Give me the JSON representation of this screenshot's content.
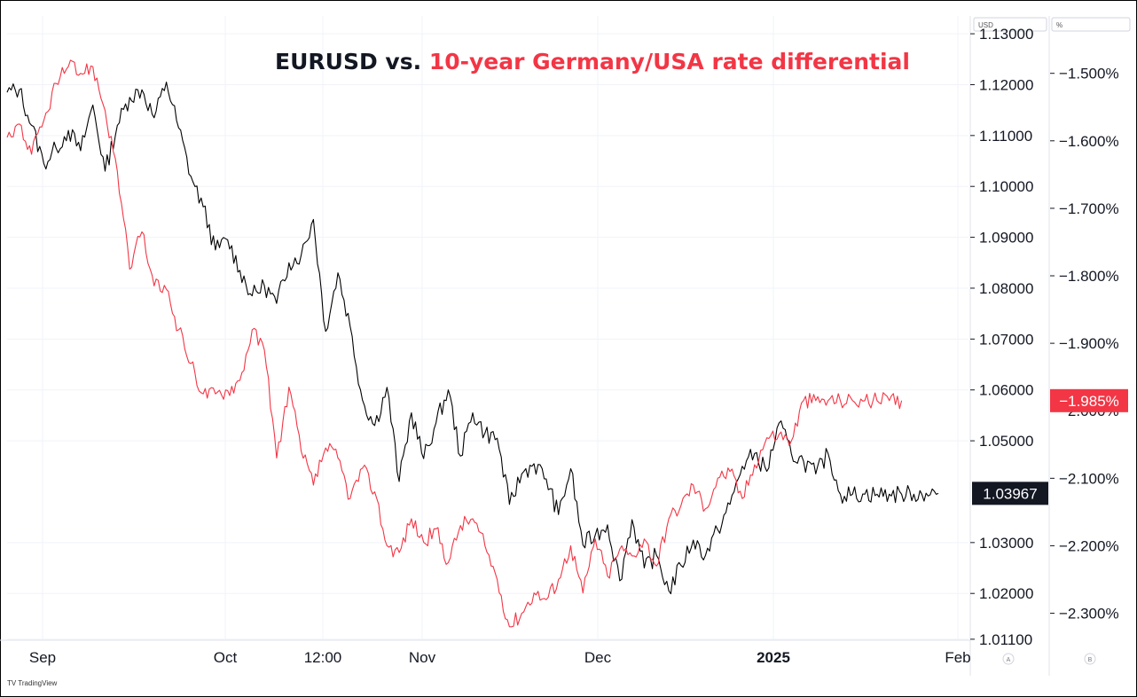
{
  "chart_data": {
    "type": "line",
    "title": {
      "part1": "EURUSD vs. ",
      "part2": "10-year Germany/USA rate differential"
    },
    "x_labels": [
      {
        "label": "Sep",
        "bold": false
      },
      {
        "label": "Oct",
        "bold": false
      },
      {
        "label": "12:00",
        "bold": false
      },
      {
        "label": "Nov",
        "bold": false
      },
      {
        "label": "Dec",
        "bold": false
      },
      {
        "label": "2025",
        "bold": true
      },
      {
        "label": "Feb",
        "bold": false
      }
    ],
    "left_axis_unit": "USD",
    "right_axis_unit": "%",
    "left_axis": {
      "ticks": [
        "1.13000",
        "1.12000",
        "1.11000",
        "1.10000",
        "1.09000",
        "1.08000",
        "1.07000",
        "1.06000",
        "1.05000",
        "1.03000",
        "1.02000",
        "1.01100"
      ],
      "ylim": [
        1.0108,
        1.1335
      ],
      "last_value_label": "1.03967",
      "last_value": 1.03967
    },
    "right_axis": {
      "ticks": [
        "−1.500%",
        "−1.600%",
        "−1.700%",
        "−1.800%",
        "−1.900%",
        "−2.000%",
        "−2.100%",
        "−2.200%",
        "−2.300%"
      ],
      "ylim": [
        -2.34,
        -1.415
      ],
      "last_value_label": "−1.985%",
      "last_value": -1.985
    },
    "axis_buttons": [
      "A",
      "B"
    ],
    "colors": {
      "eurusd": "#000000",
      "differential": "#f23645",
      "grid": "#f0f3fa",
      "last_value_eurusd_bg": "#131722",
      "last_value_diff_bg": "#f23645"
    },
    "series": [
      {
        "axis": "left",
        "color": "#000000",
        "x": [
          0,
          2,
          4,
          6,
          8,
          10,
          12,
          14,
          16,
          18,
          20,
          22,
          24,
          26,
          28,
          30,
          32,
          34,
          36,
          38,
          40,
          42,
          44,
          46,
          48,
          50,
          52,
          54,
          56,
          58,
          60,
          62,
          64,
          66,
          68,
          70,
          72,
          74,
          76,
          78,
          80,
          82,
          84,
          86,
          88,
          90,
          92,
          94,
          96,
          98,
          100,
          102,
          104,
          106,
          108,
          110,
          112,
          114,
          116,
          118,
          120,
          122,
          124,
          126,
          128,
          130,
          132,
          134,
          136,
          138,
          140,
          142,
          144,
          146,
          148,
          150,
          152
        ],
        "values": [
          1.1185,
          1.119,
          1.112,
          1.1045,
          1.1075,
          1.111,
          1.107,
          1.116,
          1.103,
          1.112,
          1.1175,
          1.119,
          1.1135,
          1.1205,
          1.1115,
          1.102,
          1.096,
          1.0875,
          1.0895,
          1.0835,
          1.0785,
          1.0805,
          1.077,
          1.085,
          1.0865,
          1.0935,
          1.0715,
          1.083,
          1.0725,
          1.058,
          1.053,
          1.0605,
          1.042,
          1.0555,
          1.0465,
          1.0535,
          1.06,
          1.047,
          1.0555,
          1.0515,
          1.0505,
          1.0375,
          1.0435,
          1.0455,
          1.0425,
          1.0355,
          1.0445,
          1.0295,
          1.0315,
          1.0335,
          1.0225,
          1.0345,
          1.025,
          1.0275,
          1.0205,
          1.0255,
          1.0305,
          1.0275,
          1.0325,
          1.0375,
          1.045,
          1.0475,
          1.044,
          1.0535,
          1.0475,
          1.046,
          1.0435,
          1.0475,
          1.0395,
          1.0395,
          1.0395,
          1.0395,
          1.0395,
          1.0395,
          1.0395,
          1.0397,
          1.03967
        ]
      },
      {
        "axis": "right",
        "color": "#f23645",
        "x": [
          0,
          2,
          4,
          6,
          8,
          10,
          12,
          14,
          16,
          18,
          20,
          22,
          24,
          26,
          28,
          30,
          32,
          34,
          36,
          38,
          40,
          42,
          44,
          46,
          48,
          50,
          52,
          54,
          56,
          58,
          60,
          62,
          64,
          66,
          68,
          70,
          72,
          74,
          76,
          78,
          80,
          82,
          84,
          86,
          88,
          90,
          92,
          94,
          96,
          98,
          100,
          102,
          104,
          106,
          108,
          110,
          112,
          114,
          116,
          118,
          120,
          122,
          124,
          126,
          128,
          130,
          132,
          134,
          136,
          138,
          140,
          142,
          144,
          146
        ],
        "values": [
          -1.595,
          -1.575,
          -1.62,
          -1.57,
          -1.515,
          -1.49,
          -1.5,
          -1.49,
          -1.555,
          -1.645,
          -1.79,
          -1.735,
          -1.815,
          -1.82,
          -1.88,
          -1.93,
          -1.975,
          -1.975,
          -1.97,
          -1.955,
          -1.88,
          -1.91,
          -2.07,
          -1.965,
          -2.06,
          -2.11,
          -2.055,
          -2.07,
          -2.13,
          -2.085,
          -2.12,
          -2.2,
          -2.21,
          -2.16,
          -2.195,
          -2.175,
          -2.225,
          -2.17,
          -2.16,
          -2.2,
          -2.25,
          -2.32,
          -2.3,
          -2.27,
          -2.28,
          -2.25,
          -2.2,
          -2.27,
          -2.19,
          -2.245,
          -2.205,
          -2.215,
          -2.19,
          -2.23,
          -2.16,
          -2.14,
          -2.11,
          -2.145,
          -2.1,
          -2.09,
          -2.13,
          -2.08,
          -2.04,
          -2.035,
          -2.045,
          -1.985,
          -1.985,
          -1.985,
          -1.985,
          -1.985,
          -1.985,
          -1.985,
          -1.985,
          -1.985
        ]
      }
    ]
  }
}
